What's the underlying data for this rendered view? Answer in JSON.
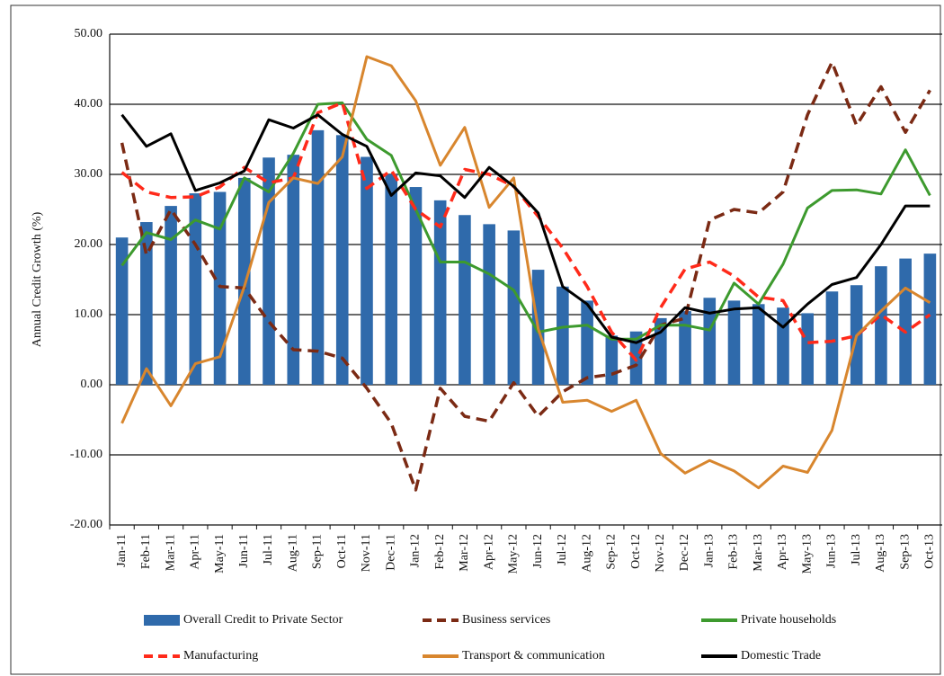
{
  "chart_data": {
    "type": "bar-line",
    "y_label": "Annual Credit Growth (%)",
    "categories": [
      "Jan-11",
      "Feb-11",
      "Mar-11",
      "Apr-11",
      "May-11",
      "Jun-11",
      "Jul-11",
      "Aug-11",
      "Sep-11",
      "Oct-11",
      "Nov-11",
      "Dec-11",
      "Jan-12",
      "Feb-12",
      "Mar-12",
      "Apr-12",
      "May-12",
      "Jun-12",
      "Jul-12",
      "Aug-12",
      "Sep-12",
      "Oct-12",
      "Nov-12",
      "Dec-12",
      "Jan-13",
      "Feb-13",
      "Mar-13",
      "Apr-13",
      "May-13",
      "Jun-13",
      "Jul-13",
      "Aug-13",
      "Sep-13",
      "Oct-13"
    ],
    "ylim": [
      -20,
      50
    ],
    "yticks": [
      {
        "value": -20,
        "label": "-20.00"
      },
      {
        "value": -10,
        "label": "-10.00"
      },
      {
        "value": 0,
        "label": "0.00"
      },
      {
        "value": 10,
        "label": "10.00"
      },
      {
        "value": 20,
        "label": "20.00"
      },
      {
        "value": 30,
        "label": "30.00"
      },
      {
        "value": 40,
        "label": "40.00"
      },
      {
        "value": 50,
        "label": "50.00"
      }
    ],
    "grid": true,
    "series": [
      {
        "name": "Overall Credit to Private Sector",
        "kind": "bar",
        "color": "#2f6aab",
        "values": [
          21,
          23.2,
          25.5,
          27.3,
          27.5,
          29.5,
          32.4,
          32.8,
          36.3,
          35.6,
          32.5,
          30,
          28.2,
          26.3,
          24.2,
          22.9,
          22,
          16.4,
          14,
          12,
          7,
          7.6,
          9.5,
          10.5,
          12.4,
          12,
          11.5,
          11,
          10.2,
          13.3,
          14.2,
          16.9,
          18,
          18.7
        ]
      },
      {
        "name": "Business services",
        "kind": "dashed",
        "color": "#7b2a14",
        "values": [
          34.5,
          18.5,
          25,
          20,
          14,
          13.8,
          9,
          5,
          4.8,
          3.8,
          -0.5,
          -5.5,
          -15,
          -0.5,
          -4.5,
          -5.2,
          0.3,
          -4.5,
          -1,
          1,
          1.5,
          2.8,
          8.5,
          9.5,
          23.5,
          25,
          24.5,
          27.5,
          38.5,
          46,
          37,
          42.5,
          36,
          42
        ]
      },
      {
        "name": "Private households",
        "kind": "line",
        "color": "#3d9a2e",
        "values": [
          17,
          21.7,
          20.7,
          23.5,
          22.2,
          29.5,
          27.5,
          33,
          40,
          40.2,
          35,
          32.7,
          25,
          17.5,
          17.5,
          15.8,
          13.5,
          7.5,
          8.2,
          8.5,
          6.5,
          6.5,
          8.5,
          8.5,
          7.8,
          14.5,
          11.5,
          17.2,
          25.2,
          27.7,
          27.8,
          27.2,
          33.5,
          27
        ]
      },
      {
        "name": "Manufacturing",
        "kind": "dashed",
        "color": "#ff2a1a",
        "values": [
          30.3,
          27.5,
          26.7,
          26.8,
          28.2,
          31,
          28.8,
          29.5,
          38.8,
          40.2,
          28,
          30.6,
          25,
          22.5,
          30.7,
          30,
          28.3,
          24,
          19.5,
          14,
          7.5,
          3.5,
          11,
          16.5,
          17.5,
          15.5,
          12.5,
          12,
          6,
          6.2,
          7,
          10,
          7.5,
          10
        ]
      },
      {
        "name": "Transport & communication",
        "kind": "line",
        "color": "#d8862e",
        "values": [
          -5.5,
          2.3,
          -3,
          3,
          4,
          14,
          26,
          29.5,
          28.7,
          32.5,
          46.8,
          45.5,
          40.5,
          31.3,
          36.7,
          25.3,
          29.5,
          8,
          -2.5,
          -2.2,
          -3.8,
          -2.2,
          -9.8,
          -12.6,
          -10.8,
          -12.3,
          -14.7,
          -11.6,
          -12.5,
          -6.5,
          7,
          10.5,
          13.8,
          11.7
        ]
      },
      {
        "name": "Domestic Trade",
        "kind": "line",
        "color": "#000000",
        "values": [
          38.5,
          34,
          35.8,
          27.7,
          28.8,
          30.5,
          37.8,
          36.6,
          38.5,
          35.7,
          34,
          27,
          30.2,
          29.8,
          26.7,
          31,
          28.3,
          24.5,
          14,
          11.5,
          6.8,
          6,
          7.5,
          11,
          10.2,
          10.8,
          11,
          8.2,
          11.5,
          14.3,
          15.3,
          20,
          25.5,
          25.5
        ]
      }
    ]
  }
}
